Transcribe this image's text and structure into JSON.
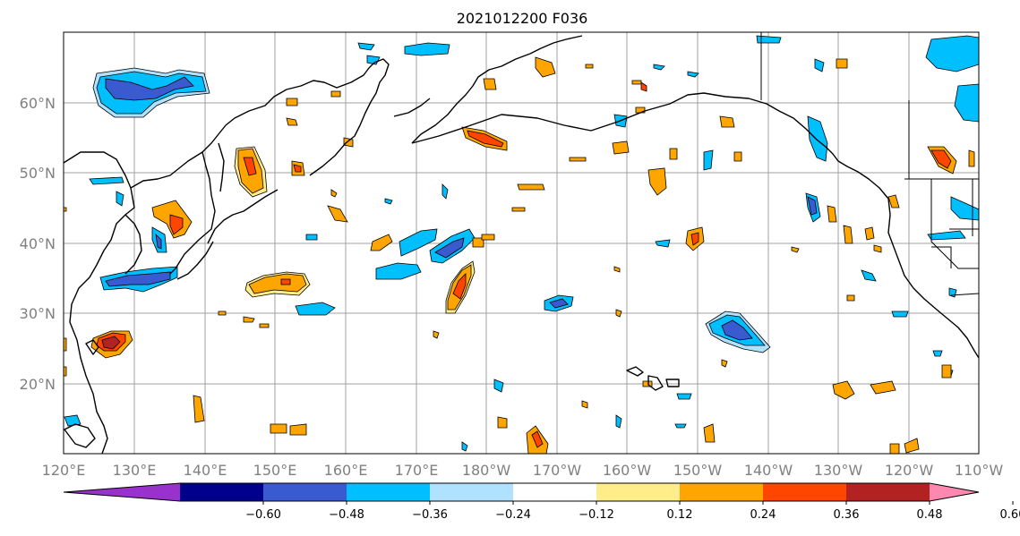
{
  "title": "2021012200 F036",
  "lat_labels": [
    "60°N",
    "50°N",
    "40°N",
    "30°N",
    "20°N"
  ],
  "lon_labels": [
    "120°E",
    "130°E",
    "140°E",
    "150°E",
    "160°E",
    "170°E",
    "180°W",
    "170°W",
    "160°W",
    "150°W",
    "140°W",
    "130°W",
    "120°W",
    "110°W"
  ],
  "colorbar": {
    "tick_labels": [
      "−0.60",
      "−0.48",
      "−0.36",
      "−0.24",
      "−0.12",
      "0.12",
      "0.24",
      "0.36",
      "0.48",
      "0.60"
    ],
    "colors": [
      "#9932cc",
      "#00008b",
      "#3a5bd0",
      "#00bfff",
      "#b0e2ff",
      "#ffffff",
      "#ffec8b",
      "#ffa500",
      "#ff4500",
      "#b22222",
      "#ff88b0"
    ]
  },
  "colors": {
    "strong_neg": "#3a5bd0",
    "mid_neg": "#00bfff",
    "weak_neg": "#b0e2ff",
    "weak_pos": "#ffec8b",
    "mid_pos": "#ffa500",
    "strong_pos": "#ff4500",
    "extreme_pos": "#b22222"
  }
}
